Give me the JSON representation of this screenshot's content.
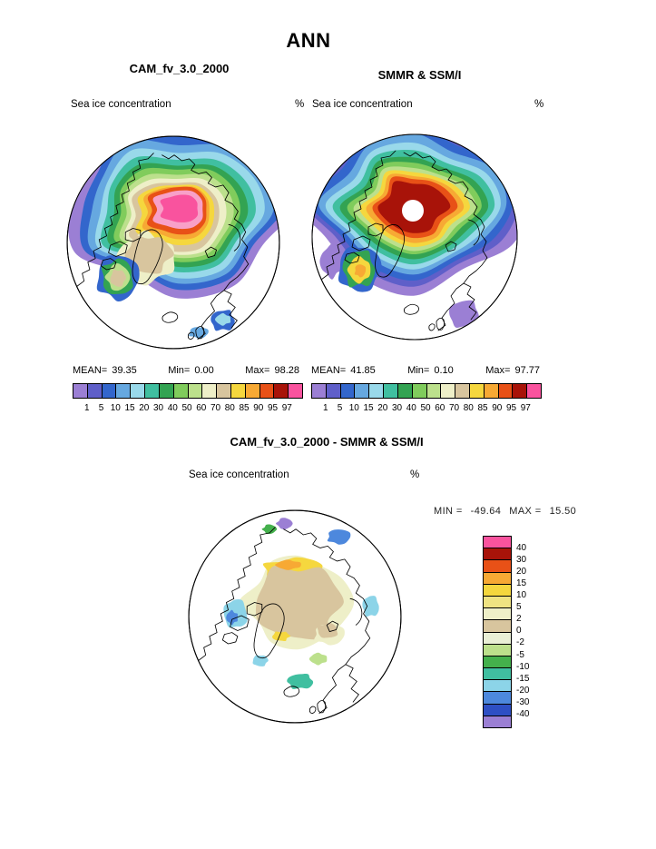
{
  "figure": {
    "season": "ANN",
    "background": "#ffffff"
  },
  "panels": {
    "model": {
      "title": "CAM_fv_3.0_2000",
      "field_label": "Sea ice concentration",
      "units": "%",
      "stats": {
        "mean_label": "MEAN=",
        "mean_value": "39.35",
        "min_label": "Min=",
        "min_value": "0.00",
        "max_label": "Max=",
        "max_value": "98.28"
      }
    },
    "obs": {
      "title": "SMMR & SSM/I",
      "field_label": "Sea ice concentration",
      "units": "%",
      "stats": {
        "mean_label": "MEAN=",
        "mean_value": "41.85",
        "min_label": "Min=",
        "min_value": "0.10",
        "max_label": "Max=",
        "max_value": "97.77"
      }
    },
    "diff": {
      "title": "CAM_fv_3.0_2000 - SMMR & SSM/I",
      "field_label": "Sea ice concentration",
      "units": "%",
      "stats": {
        "min_label": "MIN =",
        "min_value": "-49.64",
        "max_label": "MAX =",
        "max_value": "15.50"
      }
    }
  },
  "colorbar": {
    "tick_labels": [
      "1",
      "5",
      "10",
      "15",
      "20",
      "30",
      "40",
      "50",
      "60",
      "70",
      "80",
      "85",
      "90",
      "95",
      "97"
    ],
    "colors": [
      "#9B7FD4",
      "#5F5FC9",
      "#3366CC",
      "#66A8E0",
      "#99D9EA",
      "#40BFA0",
      "#33A352",
      "#80CC5C",
      "#BCE08C",
      "#EEEFC8",
      "#D8C59E",
      "#F5D73E",
      "#F7A934",
      "#E85117",
      "#A81309",
      "#F9539E"
    ]
  },
  "diff_colorbar": {
    "tick_labels": [
      "40",
      "30",
      "20",
      "15",
      "10",
      "5",
      "2",
      "0",
      "-2",
      "-5",
      "-10",
      "-15",
      "-20",
      "-30",
      "-40"
    ],
    "colors": [
      "#F9539E",
      "#A81309",
      "#E85117",
      "#F7A934",
      "#F5D73E",
      "#EFE382",
      "#EEEFC8",
      "#D8C59E",
      "#E9EFD6",
      "#BCE08C",
      "#44B04C",
      "#40BFA0",
      "#8CD4E8",
      "#4D88DD",
      "#2E4FC4",
      "#9B7FD4"
    ]
  },
  "chart_data": [
    {
      "type": "heatmap",
      "subtype": "filled-contour-polar-map",
      "projection": "north-polar-stereographic",
      "season": "ANN",
      "title": "CAM_fv_3.0_2000",
      "variable": "Sea ice concentration",
      "units": "%",
      "contour_levels": [
        1,
        5,
        10,
        15,
        20,
        30,
        40,
        50,
        60,
        70,
        80,
        85,
        90,
        95,
        97
      ],
      "palette": [
        "#9B7FD4",
        "#5F5FC9",
        "#3366CC",
        "#66A8E0",
        "#99D9EA",
        "#40BFA0",
        "#33A352",
        "#80CC5C",
        "#BCE08C",
        "#EEEFC8",
        "#D8C59E",
        "#F5D73E",
        "#F7A934",
        "#E85117",
        "#A81309",
        "#F9539E"
      ],
      "stats": {
        "mean": 39.35,
        "min": 0.0,
        "max": 98.28
      },
      "colorbar_position": "bottom",
      "description": "Highest concentrations (pink, >97%) over central Arctic, decreasing outward through red/orange/yellow/tan/green to blue and purple fringe ice at the margins"
    },
    {
      "type": "heatmap",
      "subtype": "filled-contour-polar-map",
      "projection": "north-polar-stereographic",
      "season": "ANN",
      "title": "SMMR & SSM/I",
      "variable": "Sea ice concentration",
      "units": "%",
      "contour_levels": [
        1,
        5,
        10,
        15,
        20,
        30,
        40,
        50,
        60,
        70,
        80,
        85,
        90,
        95,
        97
      ],
      "palette": [
        "#9B7FD4",
        "#5F5FC9",
        "#3366CC",
        "#66A8E0",
        "#99D9EA",
        "#40BFA0",
        "#33A352",
        "#80CC5C",
        "#BCE08C",
        "#EEEFC8",
        "#D8C59E",
        "#F5D73E",
        "#F7A934",
        "#E85117",
        "#A81309",
        "#F9539E"
      ],
      "stats": {
        "mean": 41.85,
        "min": 0.1,
        "max": 97.77
      },
      "colorbar_position": "bottom",
      "description": "Dark red (95-97%) core around white satellite pole hole, broad purple low-concentration (1-5%) fringe over marginal seas"
    },
    {
      "type": "heatmap",
      "subtype": "filled-contour-polar-map",
      "projection": "north-polar-stereographic",
      "season": "ANN",
      "title": "CAM_fv_3.0_2000 - SMMR & SSM/I",
      "variable": "Sea ice concentration difference",
      "units": "%",
      "contour_levels": [
        40,
        30,
        20,
        15,
        10,
        5,
        2,
        0,
        -2,
        -5,
        -10,
        -15,
        -20,
        -30,
        -40
      ],
      "palette": [
        "#F9539E",
        "#A81309",
        "#E85117",
        "#F7A934",
        "#F5D73E",
        "#EFE382",
        "#EEEFC8",
        "#D8C59E",
        "#E9EFD6",
        "#BCE08C",
        "#44B04C",
        "#40BFA0",
        "#8CD4E8",
        "#4D88DD",
        "#2E4FC4",
        "#9B7FD4"
      ],
      "stats": {
        "min": -49.64,
        "max": 15.5
      },
      "colorbar_position": "right",
      "description": "Mostly small positive differences (tan/cream, 0-5%) over central Arctic with yellow band at its northern edge; scattered negative (blue/cyan/green) patches at ice margins"
    }
  ]
}
